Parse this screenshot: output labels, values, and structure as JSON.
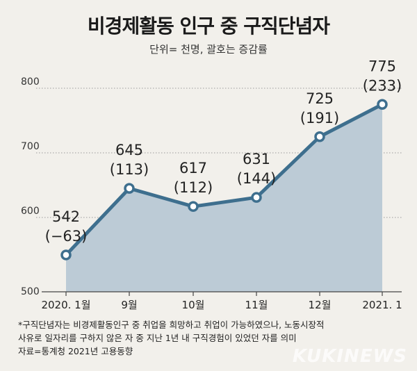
{
  "title": "비경제활동 인구 중 구직단념자",
  "subtitle": "단위= 천명, 괄호는 증감률",
  "chart_data": {
    "type": "area",
    "categories": [
      "2020. 1월",
      "9월",
      "10월",
      "11월",
      "12월",
      "2021. 1"
    ],
    "values": [
      542,
      645,
      617,
      631,
      725,
      775
    ],
    "changes": [
      "(−63)",
      "(113)",
      "(112)",
      "(144)",
      "(191)",
      "(233)"
    ],
    "yticks": [
      "500",
      "600",
      "700",
      "800"
    ],
    "ylim": [
      500,
      800
    ],
    "grid": true,
    "line_color": "#3e6f8e",
    "fill_color": "#bccbd6"
  },
  "footnotes": [
    "*구직단념자는 비경제활동인구 중 취업을 희망하고 취업이 가능하였으나, 노동시장적",
    " 사유로 일자리를 구하지 않은 자 중 지난 1년 내 구직경험이 있었던 자를 의미",
    " 자료=통계청 2021년 고용동향"
  ],
  "watermark": "KUKINEWS"
}
